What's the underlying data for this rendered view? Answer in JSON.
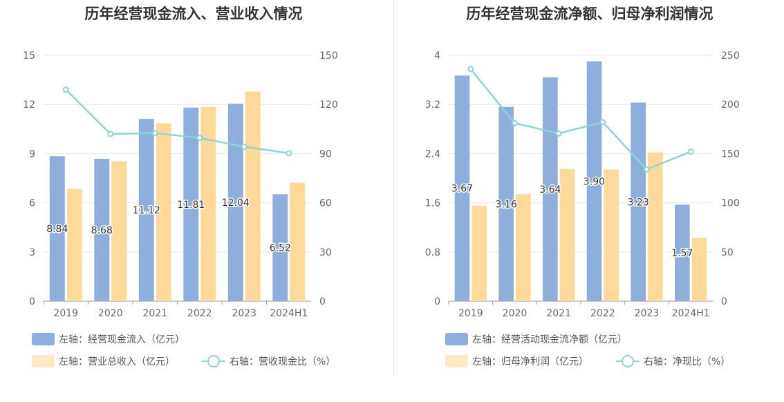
{
  "colors": {
    "bar1": "#8eaedb",
    "bar2": "#ffd99a",
    "line": "#8dd3da",
    "grid": "#e3e6ee",
    "axis": "#999999",
    "legend_bar2": "#fde9c4"
  },
  "chart_data": [
    {
      "type": "bar",
      "title": "历年经营现金流入、营业收入情况",
      "categories": [
        "2019",
        "2020",
        "2021",
        "2022",
        "2023",
        "2024H1"
      ],
      "left_axis": {
        "min": 0,
        "max": 15,
        "ticks": [
          "0",
          "3",
          "6",
          "9",
          "12",
          "15"
        ]
      },
      "right_axis": {
        "min": 0,
        "max": 150,
        "ticks": [
          "0",
          "30",
          "60",
          "90",
          "120",
          "150"
        ]
      },
      "series": [
        {
          "name": "左轴：经营现金流入（亿元）",
          "axis": "left",
          "kind": "bar",
          "values": [
            8.84,
            8.68,
            11.12,
            11.81,
            12.04,
            6.52
          ],
          "labels": [
            "8.84",
            "8.68",
            "11.12",
            "11.81",
            "12.04",
            "6.52"
          ]
        },
        {
          "name": "左轴：营业总收入（亿元）",
          "axis": "left",
          "kind": "bar",
          "values": [
            6.85,
            8.52,
            10.85,
            11.85,
            12.78,
            7.22
          ]
        },
        {
          "name": "右轴：营收现金比（%）",
          "axis": "right",
          "kind": "line",
          "values": [
            129,
            102,
            102.5,
            99.6,
            94.2,
            90.3
          ]
        }
      ]
    },
    {
      "type": "bar",
      "title": "历年经营现金流净额、归母净利润情况",
      "categories": [
        "2019",
        "2020",
        "2021",
        "2022",
        "2023",
        "2024H1"
      ],
      "left_axis": {
        "min": 0,
        "max": 4,
        "ticks": [
          "0",
          "0.8",
          "1.6",
          "2.4",
          "3.2",
          "4"
        ]
      },
      "right_axis": {
        "min": 0,
        "max": 250,
        "ticks": [
          "0",
          "50",
          "100",
          "150",
          "200",
          "250"
        ]
      },
      "series": [
        {
          "name": "左轴：经营活动现金流净额（亿元）",
          "axis": "left",
          "kind": "bar",
          "values": [
            3.67,
            3.16,
            3.64,
            3.9,
            3.23,
            1.57
          ],
          "labels": [
            "3.67",
            "3.16",
            "3.64",
            "3.90",
            "3.23",
            "1.57"
          ]
        },
        {
          "name": "左轴：归母净利润（亿元）",
          "axis": "left",
          "kind": "bar",
          "values": [
            1.55,
            1.74,
            2.15,
            2.14,
            2.42,
            1.03
          ]
        },
        {
          "name": "右轴：净现比（%）",
          "axis": "right",
          "kind": "line",
          "values": [
            236,
            181,
            170.5,
            182,
            134,
            152
          ]
        }
      ]
    }
  ]
}
